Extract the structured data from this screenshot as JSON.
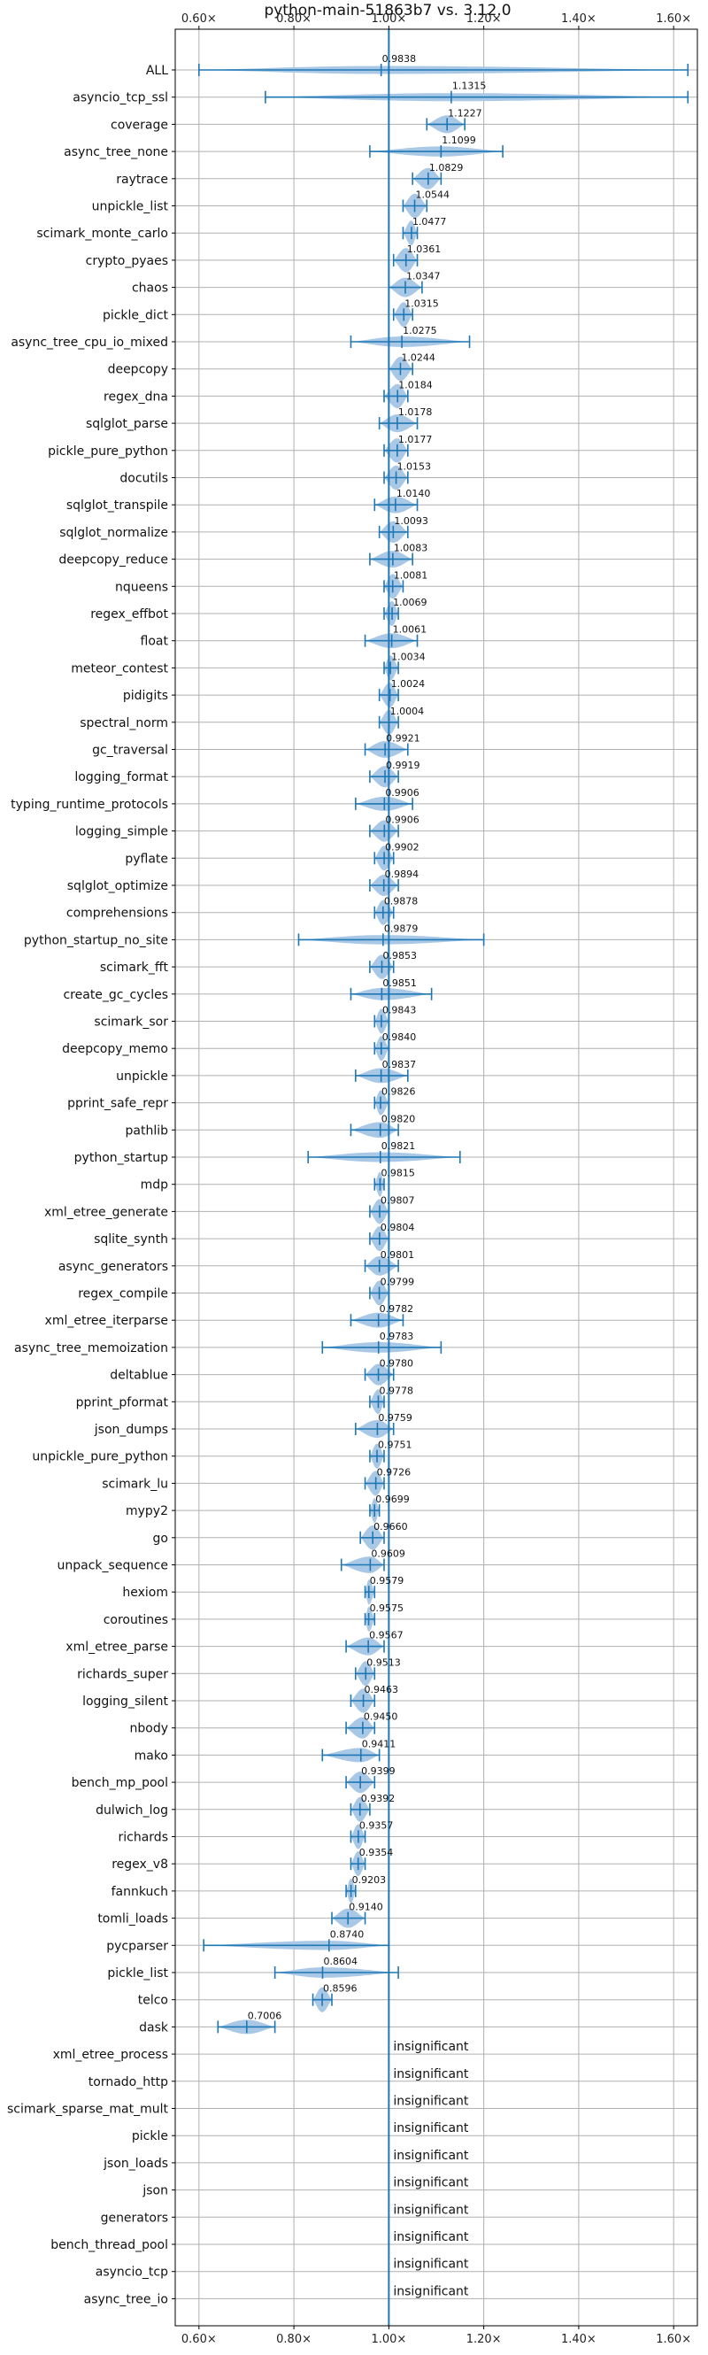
{
  "chart_data": {
    "type": "violin",
    "title": "python-main-51863b7 vs. 3.12.0",
    "xlim": [
      0.55,
      1.65
    ],
    "xticks": [
      0.6,
      0.8,
      1.0,
      1.2,
      1.4,
      1.6
    ],
    "xtick_labels": [
      "0.60×",
      "0.80×",
      "1.00×",
      "1.20×",
      "1.40×",
      "1.60×"
    ],
    "reference_line": 1.0,
    "grid": true,
    "colors": {
      "violin": "#a9c8e6",
      "line": "#1f77b4",
      "grid": "#b0b0b0"
    },
    "benchmarks": [
      {
        "name": "ALL",
        "value": 0.9838,
        "label": "0.9838",
        "min": 0.6,
        "max": 1.63
      },
      {
        "name": "asyncio_tcp_ssl",
        "value": 1.1315,
        "label": "1.1315",
        "min": 0.74,
        "max": 1.63
      },
      {
        "name": "coverage",
        "value": 1.1227,
        "label": "1.1227",
        "min": 1.08,
        "max": 1.16
      },
      {
        "name": "async_tree_none",
        "value": 1.1099,
        "label": "1.1099",
        "min": 0.96,
        "max": 1.24
      },
      {
        "name": "raytrace",
        "value": 1.0829,
        "label": "1.0829",
        "min": 1.05,
        "max": 1.11
      },
      {
        "name": "unpickle_list",
        "value": 1.0544,
        "label": "1.0544",
        "min": 1.03,
        "max": 1.08
      },
      {
        "name": "scimark_monte_carlo",
        "value": 1.0477,
        "label": "1.0477",
        "min": 1.03,
        "max": 1.06
      },
      {
        "name": "crypto_pyaes",
        "value": 1.0361,
        "label": "1.0361",
        "min": 1.01,
        "max": 1.06
      },
      {
        "name": "chaos",
        "value": 1.0347,
        "label": "1.0347",
        "min": 1.0,
        "max": 1.07
      },
      {
        "name": "pickle_dict",
        "value": 1.0315,
        "label": "1.0315",
        "min": 1.01,
        "max": 1.05
      },
      {
        "name": "async_tree_cpu_io_mixed",
        "value": 1.0275,
        "label": "1.0275",
        "min": 0.92,
        "max": 1.17
      },
      {
        "name": "deepcopy",
        "value": 1.0244,
        "label": "1.0244",
        "min": 1.0,
        "max": 1.05
      },
      {
        "name": "regex_dna",
        "value": 1.0184,
        "label": "1.0184",
        "min": 0.99,
        "max": 1.04
      },
      {
        "name": "sqlglot_parse",
        "value": 1.0178,
        "label": "1.0178",
        "min": 0.98,
        "max": 1.06
      },
      {
        "name": "pickle_pure_python",
        "value": 1.0177,
        "label": "1.0177",
        "min": 0.99,
        "max": 1.04
      },
      {
        "name": "docutils",
        "value": 1.0153,
        "label": "1.0153",
        "min": 0.99,
        "max": 1.04
      },
      {
        "name": "sqlglot_transpile",
        "value": 1.014,
        "label": "1.0140",
        "min": 0.97,
        "max": 1.06
      },
      {
        "name": "sqlglot_normalize",
        "value": 1.0093,
        "label": "1.0093",
        "min": 0.98,
        "max": 1.04
      },
      {
        "name": "deepcopy_reduce",
        "value": 1.0083,
        "label": "1.0083",
        "min": 0.96,
        "max": 1.05
      },
      {
        "name": "nqueens",
        "value": 1.0081,
        "label": "1.0081",
        "min": 0.99,
        "max": 1.03
      },
      {
        "name": "regex_effbot",
        "value": 1.0069,
        "label": "1.0069",
        "min": 0.99,
        "max": 1.02
      },
      {
        "name": "float",
        "value": 1.0061,
        "label": "1.0061",
        "min": 0.95,
        "max": 1.06
      },
      {
        "name": "meteor_contest",
        "value": 1.0034,
        "label": "1.0034",
        "min": 0.99,
        "max": 1.02
      },
      {
        "name": "pidigits",
        "value": 1.0024,
        "label": "1.0024",
        "min": 0.98,
        "max": 1.02
      },
      {
        "name": "spectral_norm",
        "value": 1.0004,
        "label": "1.0004",
        "min": 0.98,
        "max": 1.02
      },
      {
        "name": "gc_traversal",
        "value": 0.9921,
        "label": "0.9921",
        "min": 0.95,
        "max": 1.04
      },
      {
        "name": "logging_format",
        "value": 0.9919,
        "label": "0.9919",
        "min": 0.96,
        "max": 1.02
      },
      {
        "name": "typing_runtime_protocols",
        "value": 0.9906,
        "label": "0.9906",
        "min": 0.93,
        "max": 1.05
      },
      {
        "name": "logging_simple",
        "value": 0.9906,
        "label": "0.9906",
        "min": 0.96,
        "max": 1.02
      },
      {
        "name": "pyflate",
        "value": 0.9902,
        "label": "0.9902",
        "min": 0.97,
        "max": 1.01
      },
      {
        "name": "sqlglot_optimize",
        "value": 0.9894,
        "label": "0.9894",
        "min": 0.96,
        "max": 1.02
      },
      {
        "name": "comprehensions",
        "value": 0.9878,
        "label": "0.9878",
        "min": 0.97,
        "max": 1.01
      },
      {
        "name": "python_startup_no_site",
        "value": 0.9879,
        "label": "0.9879",
        "min": 0.81,
        "max": 1.2
      },
      {
        "name": "scimark_fft",
        "value": 0.9853,
        "label": "0.9853",
        "min": 0.96,
        "max": 1.01
      },
      {
        "name": "create_gc_cycles",
        "value": 0.9851,
        "label": "0.9851",
        "min": 0.92,
        "max": 1.09
      },
      {
        "name": "scimark_sor",
        "value": 0.9843,
        "label": "0.9843",
        "min": 0.97,
        "max": 1.0
      },
      {
        "name": "deepcopy_memo",
        "value": 0.984,
        "label": "0.9840",
        "min": 0.97,
        "max": 1.0
      },
      {
        "name": "unpickle",
        "value": 0.9837,
        "label": "0.9837",
        "min": 0.93,
        "max": 1.04
      },
      {
        "name": "pprint_safe_repr",
        "value": 0.9826,
        "label": "0.9826",
        "min": 0.97,
        "max": 1.0
      },
      {
        "name": "pathlib",
        "value": 0.982,
        "label": "0.9820",
        "min": 0.92,
        "max": 1.02
      },
      {
        "name": "python_startup",
        "value": 0.9821,
        "label": "0.9821",
        "min": 0.83,
        "max": 1.15
      },
      {
        "name": "mdp",
        "value": 0.9815,
        "label": "0.9815",
        "min": 0.97,
        "max": 0.99
      },
      {
        "name": "xml_etree_generate",
        "value": 0.9807,
        "label": "0.9807",
        "min": 0.96,
        "max": 1.0
      },
      {
        "name": "sqlite_synth",
        "value": 0.9804,
        "label": "0.9804",
        "min": 0.96,
        "max": 1.0
      },
      {
        "name": "async_generators",
        "value": 0.9801,
        "label": "0.9801",
        "min": 0.95,
        "max": 1.02
      },
      {
        "name": "regex_compile",
        "value": 0.9799,
        "label": "0.9799",
        "min": 0.96,
        "max": 1.0
      },
      {
        "name": "xml_etree_iterparse",
        "value": 0.9782,
        "label": "0.9782",
        "min": 0.92,
        "max": 1.03
      },
      {
        "name": "async_tree_memoization",
        "value": 0.9783,
        "label": "0.9783",
        "min": 0.86,
        "max": 1.11
      },
      {
        "name": "deltablue",
        "value": 0.978,
        "label": "0.9780",
        "min": 0.95,
        "max": 1.01
      },
      {
        "name": "pprint_pformat",
        "value": 0.9778,
        "label": "0.9778",
        "min": 0.96,
        "max": 0.99
      },
      {
        "name": "json_dumps",
        "value": 0.9759,
        "label": "0.9759",
        "min": 0.93,
        "max": 1.01
      },
      {
        "name": "unpickle_pure_python",
        "value": 0.9751,
        "label": "0.9751",
        "min": 0.96,
        "max": 0.99
      },
      {
        "name": "scimark_lu",
        "value": 0.9726,
        "label": "0.9726",
        "min": 0.95,
        "max": 0.99
      },
      {
        "name": "mypy2",
        "value": 0.9699,
        "label": "0.9699",
        "min": 0.96,
        "max": 0.98
      },
      {
        "name": "go",
        "value": 0.966,
        "label": "0.9660",
        "min": 0.94,
        "max": 0.99
      },
      {
        "name": "unpack_sequence",
        "value": 0.9609,
        "label": "0.9609",
        "min": 0.9,
        "max": 0.99
      },
      {
        "name": "hexiom",
        "value": 0.9579,
        "label": "0.9579",
        "min": 0.95,
        "max": 0.97
      },
      {
        "name": "coroutines",
        "value": 0.9575,
        "label": "0.9575",
        "min": 0.95,
        "max": 0.97
      },
      {
        "name": "xml_etree_parse",
        "value": 0.9567,
        "label": "0.9567",
        "min": 0.91,
        "max": 0.99
      },
      {
        "name": "richards_super",
        "value": 0.9513,
        "label": "0.9513",
        "min": 0.93,
        "max": 0.97
      },
      {
        "name": "logging_silent",
        "value": 0.9463,
        "label": "0.9463",
        "min": 0.92,
        "max": 0.97
      },
      {
        "name": "nbody",
        "value": 0.945,
        "label": "0.9450",
        "min": 0.91,
        "max": 0.97
      },
      {
        "name": "mako",
        "value": 0.9411,
        "label": "0.9411",
        "min": 0.86,
        "max": 0.98
      },
      {
        "name": "bench_mp_pool",
        "value": 0.9399,
        "label": "0.9399",
        "min": 0.91,
        "max": 0.97
      },
      {
        "name": "dulwich_log",
        "value": 0.9392,
        "label": "0.9392",
        "min": 0.92,
        "max": 0.96
      },
      {
        "name": "richards",
        "value": 0.9357,
        "label": "0.9357",
        "min": 0.92,
        "max": 0.95
      },
      {
        "name": "regex_v8",
        "value": 0.9354,
        "label": "0.9354",
        "min": 0.92,
        "max": 0.95
      },
      {
        "name": "fannkuch",
        "value": 0.9203,
        "label": "0.9203",
        "min": 0.91,
        "max": 0.93
      },
      {
        "name": "tomli_loads",
        "value": 0.914,
        "label": "0.9140",
        "min": 0.88,
        "max": 0.95
      },
      {
        "name": "pycparser",
        "value": 0.874,
        "label": "0.8740",
        "min": 0.61,
        "max": 1.0
      },
      {
        "name": "pickle_list",
        "value": 0.8604,
        "label": "0.8604",
        "min": 0.76,
        "max": 1.02
      },
      {
        "name": "telco",
        "value": 0.8596,
        "label": "0.8596",
        "min": 0.84,
        "max": 0.88
      },
      {
        "name": "dask",
        "value": 0.7006,
        "label": "0.7006",
        "min": 0.64,
        "max": 0.76
      },
      {
        "name": "xml_etree_process",
        "insignificant": true,
        "label": "insignificant"
      },
      {
        "name": "tornado_http",
        "insignificant": true,
        "label": "insignificant"
      },
      {
        "name": "scimark_sparse_mat_mult",
        "insignificant": true,
        "label": "insignificant"
      },
      {
        "name": "pickle",
        "insignificant": true,
        "label": "insignificant"
      },
      {
        "name": "json_loads",
        "insignificant": true,
        "label": "insignificant"
      },
      {
        "name": "json",
        "insignificant": true,
        "label": "insignificant"
      },
      {
        "name": "generators",
        "insignificant": true,
        "label": "insignificant"
      },
      {
        "name": "bench_thread_pool",
        "insignificant": true,
        "label": "insignificant"
      },
      {
        "name": "asyncio_tcp",
        "insignificant": true,
        "label": "insignificant"
      },
      {
        "name": "async_tree_io",
        "insignificant": true,
        "label": "insignificant"
      }
    ]
  }
}
